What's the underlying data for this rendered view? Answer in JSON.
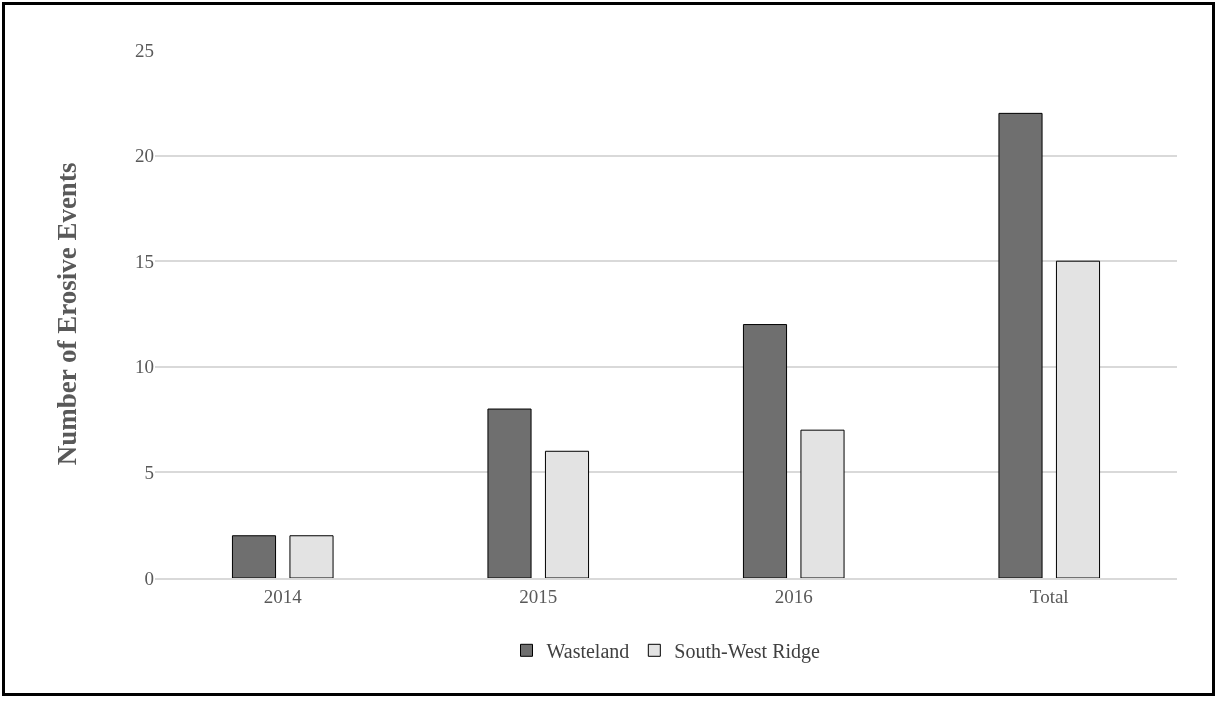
{
  "chart_data": {
    "type": "bar",
    "ylabel": "Number of Erosive Events",
    "categories": [
      "2014",
      "2015",
      "2016",
      "Total"
    ],
    "series": [
      {
        "name": "Wasteland",
        "color": "#6f6f6f",
        "values": [
          2,
          8,
          12,
          22
        ]
      },
      {
        "name": "South-West Ridge",
        "color": "#e3e3e3",
        "values": [
          2,
          6,
          7,
          15
        ]
      }
    ],
    "ylim": [
      0,
      25
    ],
    "yticks": [
      0,
      5,
      10,
      15,
      20,
      25
    ],
    "grid": "y",
    "legend": "bottom"
  }
}
